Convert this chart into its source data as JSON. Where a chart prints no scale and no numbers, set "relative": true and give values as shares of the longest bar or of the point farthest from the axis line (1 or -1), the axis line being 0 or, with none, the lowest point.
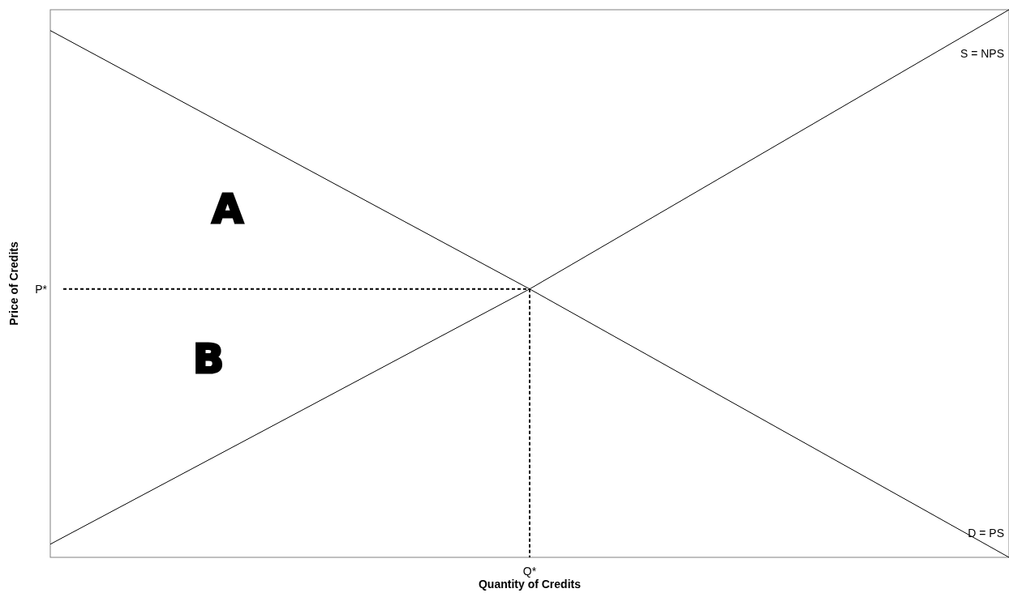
{
  "chart_data": {
    "type": "line",
    "relative": true,
    "xlabel": "Quantity of Credits",
    "ylabel": "Price of Credits",
    "categories": [
      null,
      null,
      null
    ],
    "grid": false,
    "marker": "none",
    "line_style": "solid",
    "series": [
      {
        "name": "S = NPS",
        "color": "#000000",
        "values": [
          0.024,
          0.49,
          1
        ]
      },
      {
        "name": "D = PS",
        "color": "#000000",
        "values": [
          0.962,
          0.49,
          0
        ]
      }
    ],
    "ref_lines": [
      {
        "axis": "y",
        "value": 0.49,
        "label": "P*",
        "line_style": "dashed",
        "color": "#000000"
      },
      {
        "axis": "x",
        "value": "Q*",
        "line_style": "dashed",
        "color": "#000000"
      }
    ],
    "annotations": [
      "A",
      "B"
    ]
  }
}
